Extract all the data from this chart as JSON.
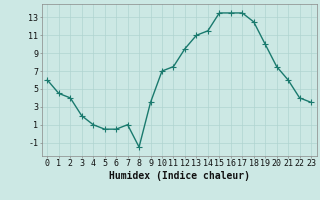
{
  "x": [
    0,
    1,
    2,
    3,
    4,
    5,
    6,
    7,
    8,
    9,
    10,
    11,
    12,
    13,
    14,
    15,
    16,
    17,
    18,
    19,
    20,
    21,
    22,
    23
  ],
  "y": [
    6,
    4.5,
    4,
    2,
    1,
    0.5,
    0.5,
    1,
    -1.5,
    3.5,
    7,
    7.5,
    9.5,
    11,
    11.5,
    13.5,
    13.5,
    13.5,
    12.5,
    10,
    7.5,
    6,
    4,
    3.5
  ],
  "line_color": "#1a7a6e",
  "marker": "+",
  "marker_size": 4,
  "marker_linewidth": 0.8,
  "bg_color": "#cce8e4",
  "grid_color": "#b0d4d0",
  "xlabel": "Humidex (Indice chaleur)",
  "xlabel_fontsize": 7,
  "ylabel_ticks": [
    -1,
    1,
    3,
    5,
    7,
    9,
    11,
    13
  ],
  "xlim": [
    -0.5,
    23.5
  ],
  "ylim": [
    -2.5,
    14.5
  ],
  "xtick_labels": [
    "0",
    "1",
    "2",
    "3",
    "4",
    "5",
    "6",
    "7",
    "8",
    "9",
    "10",
    "11",
    "12",
    "13",
    "14",
    "15",
    "16",
    "17",
    "18",
    "19",
    "20",
    "21",
    "22",
    "23"
  ],
  "line_width": 1.0,
  "tick_fontsize": 6,
  "grid_linewidth": 0.5
}
